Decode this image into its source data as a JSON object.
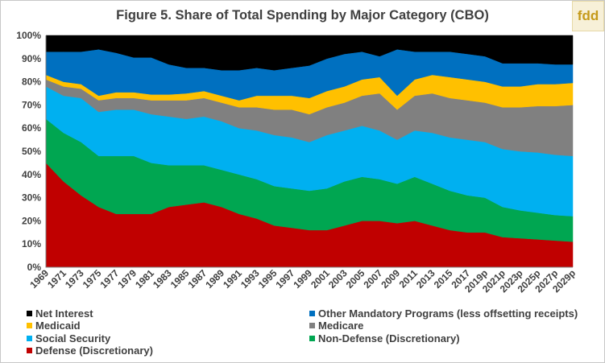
{
  "chart_title": "Figure 5. Share of Total Spending by Major Category (CBO)",
  "logo_text": "fdd",
  "chart_data": {
    "type": "area",
    "stacked": true,
    "title": "Figure 5. Share of Total Spending by Major Category (CBO)",
    "xlabel": "",
    "ylabel": "",
    "ylim": [
      0,
      100
    ],
    "y_ticks": [
      "0%",
      "10%",
      "20%",
      "30%",
      "40%",
      "50%",
      "60%",
      "70%",
      "80%",
      "90%",
      "100%"
    ],
    "x_tick_labels": [
      "1969",
      "1971",
      "1973",
      "1975",
      "1977",
      "1979",
      "1981",
      "1983",
      "1985",
      "1987",
      "1989",
      "1991",
      "1993",
      "1995",
      "1997",
      "1999",
      "2001",
      "2003",
      "2005",
      "2007",
      "2009",
      "2011",
      "2013",
      "2015",
      "2017",
      "2019p",
      "2021p",
      "2023p",
      "2025p",
      "2027p",
      "2029p"
    ],
    "x_start": 1969,
    "x_end": 2029,
    "grid": false,
    "legend_position": "bottom",
    "series": [
      {
        "name": "Defense (Discretionary)",
        "color": "#c00000",
        "points": [
          [
            1969,
            45
          ],
          [
            1971,
            37
          ],
          [
            1973,
            31
          ],
          [
            1975,
            26
          ],
          [
            1977,
            23
          ],
          [
            1979,
            23
          ],
          [
            1981,
            23
          ],
          [
            1983,
            26
          ],
          [
            1985,
            27
          ],
          [
            1987,
            28
          ],
          [
            1989,
            26
          ],
          [
            1991,
            23
          ],
          [
            1993,
            21
          ],
          [
            1995,
            18
          ],
          [
            1997,
            17
          ],
          [
            1999,
            16
          ],
          [
            2001,
            16
          ],
          [
            2003,
            18
          ],
          [
            2005,
            20
          ],
          [
            2007,
            20
          ],
          [
            2009,
            19
          ],
          [
            2011,
            20
          ],
          [
            2013,
            18
          ],
          [
            2015,
            16
          ],
          [
            2017,
            15
          ],
          [
            2019,
            15
          ],
          [
            2021,
            13
          ],
          [
            2023,
            12.5
          ],
          [
            2025,
            12
          ],
          [
            2027,
            11.5
          ],
          [
            2029,
            11
          ]
        ]
      },
      {
        "name": "Non-Defense (Discretionary)",
        "color": "#00a651",
        "points": [
          [
            1969,
            19
          ],
          [
            1971,
            21
          ],
          [
            1973,
            23
          ],
          [
            1975,
            22
          ],
          [
            1977,
            25
          ],
          [
            1979,
            25
          ],
          [
            1981,
            22
          ],
          [
            1983,
            18
          ],
          [
            1985,
            17
          ],
          [
            1987,
            16
          ],
          [
            1989,
            16
          ],
          [
            1991,
            17
          ],
          [
            1993,
            17
          ],
          [
            1995,
            17
          ],
          [
            1997,
            17
          ],
          [
            1999,
            17
          ],
          [
            2001,
            18
          ],
          [
            2003,
            19
          ],
          [
            2005,
            19
          ],
          [
            2007,
            18
          ],
          [
            2009,
            17
          ],
          [
            2011,
            19
          ],
          [
            2013,
            18
          ],
          [
            2015,
            17
          ],
          [
            2017,
            16
          ],
          [
            2019,
            15
          ],
          [
            2021,
            13
          ],
          [
            2023,
            12
          ],
          [
            2025,
            11.5
          ],
          [
            2027,
            11
          ],
          [
            2029,
            11
          ]
        ]
      },
      {
        "name": "Social Security",
        "color": "#00b0f0",
        "points": [
          [
            1969,
            14
          ],
          [
            1971,
            16
          ],
          [
            1973,
            19
          ],
          [
            1975,
            19
          ],
          [
            1977,
            20
          ],
          [
            1979,
            20
          ],
          [
            1981,
            21
          ],
          [
            1983,
            21
          ],
          [
            1985,
            20
          ],
          [
            1987,
            21
          ],
          [
            1989,
            21
          ],
          [
            1991,
            20
          ],
          [
            1993,
            21
          ],
          [
            1995,
            22
          ],
          [
            1997,
            22
          ],
          [
            1999,
            21
          ],
          [
            2001,
            23
          ],
          [
            2003,
            22
          ],
          [
            2005,
            22
          ],
          [
            2007,
            21
          ],
          [
            2009,
            19
          ],
          [
            2011,
            20
          ],
          [
            2013,
            22
          ],
          [
            2015,
            23
          ],
          [
            2017,
            24
          ],
          [
            2019,
            24
          ],
          [
            2021,
            25
          ],
          [
            2023,
            25.5
          ],
          [
            2025,
            26
          ],
          [
            2027,
            26
          ],
          [
            2029,
            26
          ]
        ]
      },
      {
        "name": "Medicare",
        "color": "#808080",
        "points": [
          [
            1969,
            3
          ],
          [
            1971,
            4
          ],
          [
            1973,
            4
          ],
          [
            1975,
            5
          ],
          [
            1977,
            5
          ],
          [
            1979,
            5
          ],
          [
            1981,
            6
          ],
          [
            1983,
            7
          ],
          [
            1985,
            8
          ],
          [
            1987,
            8
          ],
          [
            1989,
            8
          ],
          [
            1991,
            9
          ],
          [
            1993,
            10
          ],
          [
            1995,
            11
          ],
          [
            1997,
            12
          ],
          [
            1999,
            12
          ],
          [
            2001,
            12
          ],
          [
            2003,
            12
          ],
          [
            2005,
            13
          ],
          [
            2007,
            16
          ],
          [
            2009,
            13
          ],
          [
            2011,
            15
          ],
          [
            2013,
            17
          ],
          [
            2015,
            17
          ],
          [
            2017,
            17
          ],
          [
            2019,
            17
          ],
          [
            2021,
            18
          ],
          [
            2023,
            19
          ],
          [
            2025,
            20
          ],
          [
            2027,
            21
          ],
          [
            2029,
            22
          ]
        ]
      },
      {
        "name": "Medicaid",
        "color": "#ffc000",
        "points": [
          [
            1969,
            2
          ],
          [
            1971,
            2
          ],
          [
            1973,
            2
          ],
          [
            1975,
            2
          ],
          [
            1977,
            2.5
          ],
          [
            1979,
            2.5
          ],
          [
            1981,
            2.5
          ],
          [
            1983,
            2.5
          ],
          [
            1985,
            3
          ],
          [
            1987,
            3
          ],
          [
            1989,
            3
          ],
          [
            1991,
            3
          ],
          [
            1993,
            5
          ],
          [
            1995,
            6
          ],
          [
            1997,
            6
          ],
          [
            1999,
            7
          ],
          [
            2001,
            7
          ],
          [
            2003,
            7
          ],
          [
            2005,
            7
          ],
          [
            2007,
            7
          ],
          [
            2009,
            6
          ],
          [
            2011,
            7
          ],
          [
            2013,
            8
          ],
          [
            2015,
            9
          ],
          [
            2017,
            9
          ],
          [
            2019,
            9
          ],
          [
            2021,
            9
          ],
          [
            2023,
            9
          ],
          [
            2025,
            9.5
          ],
          [
            2027,
            9.5
          ],
          [
            2029,
            9.5
          ]
        ]
      },
      {
        "name": "Other Mandatory Programs (less offsetting receipts)",
        "color": "#0070c0",
        "points": [
          [
            1969,
            10
          ],
          [
            1971,
            13
          ],
          [
            1973,
            14
          ],
          [
            1975,
            20
          ],
          [
            1977,
            17
          ],
          [
            1979,
            15
          ],
          [
            1981,
            16
          ],
          [
            1983,
            13
          ],
          [
            1985,
            11
          ],
          [
            1987,
            10
          ],
          [
            1989,
            11
          ],
          [
            1991,
            13
          ],
          [
            1993,
            12
          ],
          [
            1995,
            11
          ],
          [
            1997,
            12
          ],
          [
            1999,
            14
          ],
          [
            2001,
            14
          ],
          [
            2003,
            14
          ],
          [
            2005,
            12
          ],
          [
            2007,
            9
          ],
          [
            2009,
            20
          ],
          [
            2011,
            12
          ],
          [
            2013,
            10
          ],
          [
            2015,
            11
          ],
          [
            2017,
            11
          ],
          [
            2019,
            11
          ],
          [
            2021,
            10
          ],
          [
            2023,
            10
          ],
          [
            2025,
            9
          ],
          [
            2027,
            8.5
          ],
          [
            2029,
            8
          ]
        ]
      },
      {
        "name": "Net Interest",
        "color": "#000000",
        "points": [
          [
            1969,
            7
          ],
          [
            1971,
            7
          ],
          [
            1973,
            7
          ],
          [
            1975,
            6
          ],
          [
            1977,
            7.5
          ],
          [
            1979,
            9.5
          ],
          [
            1981,
            9.5
          ],
          [
            1983,
            12.5
          ],
          [
            1985,
            14
          ],
          [
            1987,
            14
          ],
          [
            1989,
            15
          ],
          [
            1991,
            15
          ],
          [
            1993,
            14
          ],
          [
            1995,
            15
          ],
          [
            1997,
            14
          ],
          [
            1999,
            13
          ],
          [
            2001,
            10
          ],
          [
            2003,
            8
          ],
          [
            2005,
            7
          ],
          [
            2007,
            9
          ],
          [
            2009,
            6
          ],
          [
            2011,
            7
          ],
          [
            2013,
            7
          ],
          [
            2015,
            7
          ],
          [
            2017,
            8
          ],
          [
            2019,
            9
          ],
          [
            2021,
            12
          ],
          [
            2023,
            12
          ],
          [
            2025,
            12
          ],
          [
            2027,
            12.5
          ],
          [
            2029,
            12.5
          ]
        ]
      }
    ]
  },
  "legend": {
    "items": [
      {
        "label": "Net Interest",
        "color": "#000000"
      },
      {
        "label": "Other Mandatory Programs (less offsetting receipts)",
        "color": "#0070c0"
      },
      {
        "label": "Medicaid",
        "color": "#ffc000"
      },
      {
        "label": "Medicare",
        "color": "#808080"
      },
      {
        "label": "Social Security",
        "color": "#00b0f0"
      },
      {
        "label": "Non-Defense (Discretionary)",
        "color": "#00a651"
      },
      {
        "label": "Defense (Discretionary)",
        "color": "#c00000"
      }
    ]
  }
}
